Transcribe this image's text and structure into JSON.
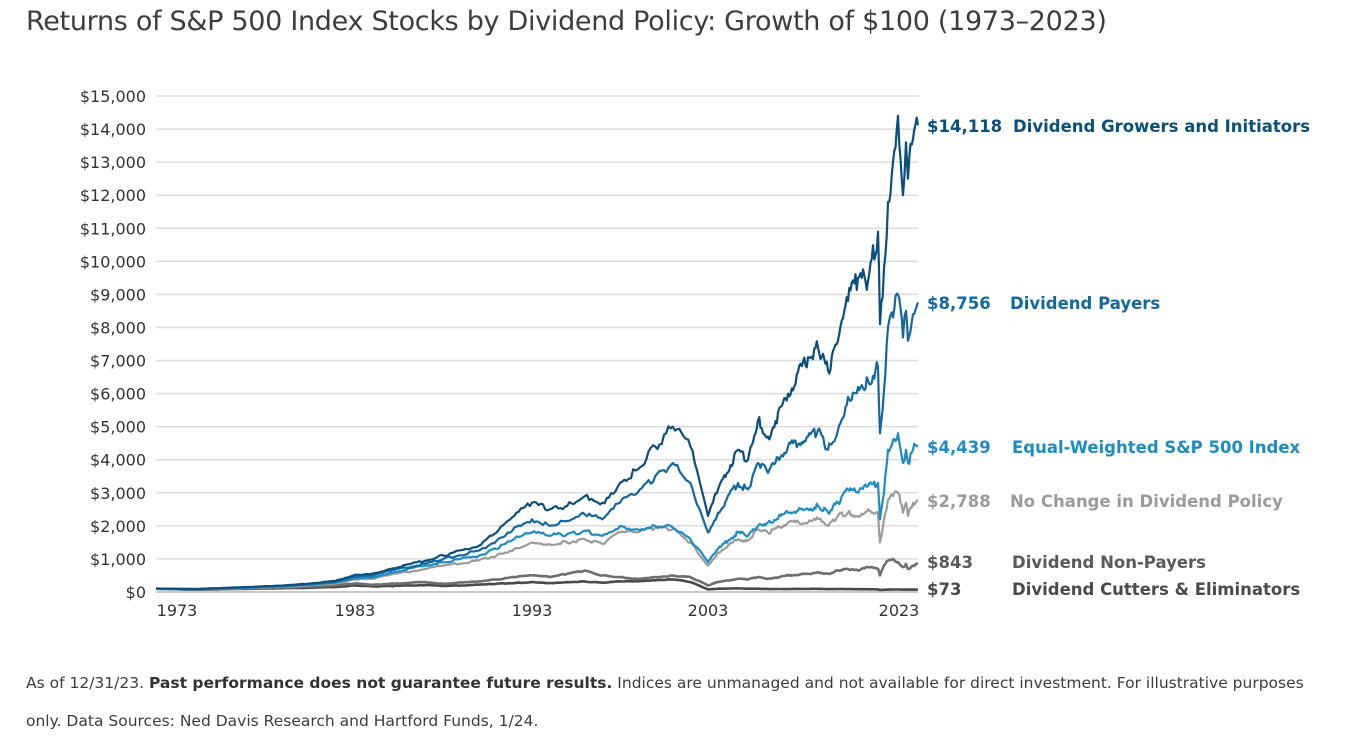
{
  "title": "Returns of S&P 500 Index Stocks by Dividend Policy: Growth of $100 (1973–2023)",
  "footnote": {
    "prefix": "As of 12/31/23. ",
    "bold": "Past performance does not guarantee future results.",
    "suffix": " Indices are unmanaged and not available for direct investment. For illustrative purposes only. Data Sources: Ned Davis Research and Hartford Funds, 1/24."
  },
  "chart_data": {
    "type": "line",
    "title": "Returns of S&P 500 Index Stocks by Dividend Policy: Growth of $100 (1973–2023)",
    "xlabel": "",
    "ylabel": "",
    "ylim": [
      0,
      15000
    ],
    "yticks": [
      0,
      1000,
      2000,
      3000,
      4000,
      5000,
      6000,
      7000,
      8000,
      9000,
      10000,
      11000,
      12000,
      13000,
      14000,
      15000
    ],
    "ytick_labels": [
      "$0",
      "$1,000",
      "$2,000",
      "$3,000",
      "$4,000",
      "$5,000",
      "$6,000",
      "$7,000",
      "$8,000",
      "$9,000",
      "$10,000",
      "$11,000",
      "$12,000",
      "$13,000",
      "$14,000",
      "$15,000"
    ],
    "xticks": [
      "1973",
      "1983",
      "1993",
      "2003",
      "2023"
    ],
    "grid": true,
    "legend": "right-end labels",
    "x": [
      1973,
      1975,
      1978,
      1980,
      1982,
      1983,
      1984,
      1985,
      1987,
      1988,
      1990,
      1991,
      1992,
      1993,
      1994,
      1995,
      1996,
      1997,
      1998,
      1999,
      2000,
      2001,
      2002,
      2003,
      2004,
      2006,
      2007,
      2008,
      2009,
      2011,
      2013,
      2014,
      2015,
      2016,
      2017,
      2018,
      2019,
      2020,
      2020.2,
      2020.6,
      2021,
      2021.5,
      2022,
      2022.5,
      2022.8,
      2023,
      2023.5,
      2023.99
    ],
    "series": [
      {
        "name": "Dividend Growers and Initiators",
        "end_label": "$14,118",
        "color": "#0b4f7d",
        "values": [
          100,
          90,
          160,
          220,
          330,
          520,
          560,
          700,
          950,
          1100,
          1400,
          1800,
          2300,
          2700,
          2500,
          2600,
          2900,
          2700,
          3300,
          3700,
          4400,
          5000,
          4400,
          2300,
          3100,
          4300,
          4000,
          5200,
          4700,
          6000,
          7100,
          7400,
          6700,
          7600,
          8800,
          9500,
          9400,
          10900,
          8100,
          9800,
          11800,
          13000,
          14400,
          12000,
          13600,
          12500,
          13700,
          14118
        ]
      },
      {
        "name": "Dividend Payers",
        "end_label": "$8,756",
        "color": "#1468a0",
        "values": [
          100,
          90,
          150,
          210,
          310,
          470,
          500,
          640,
          860,
          1000,
          1250,
          1550,
          1950,
          2200,
          2000,
          2150,
          2350,
          2200,
          2700,
          3000,
          3500,
          3900,
          3300,
          1800,
          2400,
          3300,
          3100,
          3900,
          3600,
          4400,
          4700,
          4900,
          4300,
          4900,
          5900,
          6200,
          6400,
          6800,
          4800,
          6100,
          8000,
          8300,
          9000,
          7700,
          8500,
          7600,
          8400,
          8756
        ]
      },
      {
        "name": "Equal-Weighted S&P 500 Index",
        "end_label": "$4,439",
        "color": "#1e8cc4",
        "values": [
          100,
          85,
          140,
          190,
          280,
          420,
          450,
          580,
          800,
          900,
          1100,
          1300,
          1600,
          1800,
          1700,
          1750,
          1850,
          1700,
          2000,
          1900,
          2000,
          1950,
          1600,
          900,
          1300,
          1800,
          1700,
          2000,
          2100,
          2400,
          2500,
          2600,
          2400,
          2700,
          3100,
          3000,
          3200,
          3300,
          2200,
          3000,
          4300,
          4600,
          4800,
          3900,
          4300,
          3900,
          4300,
          4439
        ]
      },
      {
        "name": "No Change in Dividend Policy",
        "end_label": "$2,788",
        "color": "#9b9b9b",
        "values": [
          100,
          85,
          130,
          170,
          250,
          380,
          400,
          520,
          700,
          800,
          950,
          1100,
          1300,
          1500,
          1450,
          1500,
          1600,
          1450,
          1800,
          1800,
          1950,
          1900,
          1500,
          800,
          1200,
          1600,
          1550,
          1900,
          1800,
          2100,
          2100,
          2200,
          2000,
          2300,
          2400,
          2300,
          2500,
          2400,
          1500,
          2200,
          2800,
          2900,
          3000,
          2400,
          2700,
          2300,
          2700,
          2788
        ]
      },
      {
        "name": "Dividend Non-Payers",
        "end_label": "$843",
        "color": "#6e6e6e",
        "values": [
          100,
          70,
          110,
          150,
          200,
          260,
          220,
          250,
          300,
          250,
          320,
          380,
          450,
          500,
          450,
          550,
          650,
          500,
          450,
          400,
          450,
          500,
          450,
          200,
          300,
          400,
          380,
          450,
          400,
          500,
          550,
          600,
          550,
          650,
          700,
          650,
          750,
          700,
          500,
          800,
          950,
          1000,
          900,
          750,
          850,
          700,
          800,
          843
        ]
      },
      {
        "name": "Dividend Cutters & Eliminators",
        "end_label": "$73",
        "color": "#4a4a4a",
        "values": [
          100,
          70,
          100,
          120,
          150,
          200,
          170,
          180,
          210,
          180,
          220,
          250,
          270,
          300,
          270,
          300,
          320,
          280,
          320,
          320,
          350,
          380,
          300,
          80,
          100,
          110,
          100,
          100,
          90,
          90,
          95,
          95,
          85,
          90,
          90,
          85,
          85,
          80,
          60,
          70,
          75,
          75,
          75,
          70,
          72,
          70,
          72,
          73
        ]
      }
    ]
  }
}
